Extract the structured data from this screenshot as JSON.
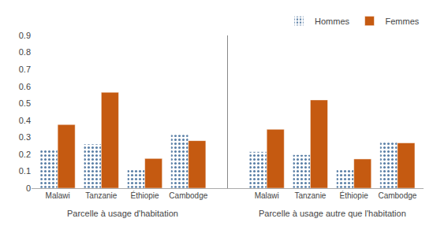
{
  "chart_data": {
    "type": "bar",
    "categories": [
      "Malawi",
      "Tanzanie",
      "Éthiopie",
      "Cambodge",
      "Malawi",
      "Tanzanie",
      "Éthiopie",
      "Cambodge"
    ],
    "series": [
      {
        "name": "Hommes",
        "color": "#9dc3e6",
        "values": [
          0.225,
          0.26,
          0.115,
          0.315,
          0.215,
          0.197,
          0.112,
          0.27
        ]
      },
      {
        "name": "Femmes",
        "color": "#c55a11",
        "values": [
          0.375,
          0.565,
          0.175,
          0.28,
          0.347,
          0.52,
          0.172,
          0.267
        ]
      }
    ],
    "annotations": [
      "Parcelle à usage d'habitation",
      "Parcelle à usage autre que l'habitation"
    ],
    "ylim": [
      0,
      0.9
    ],
    "yticks": [
      0,
      0.1,
      0.2,
      0.3,
      0.4,
      0.5,
      0.6,
      0.7,
      0.8,
      0.9
    ],
    "grid": false,
    "legend": "upper right"
  }
}
